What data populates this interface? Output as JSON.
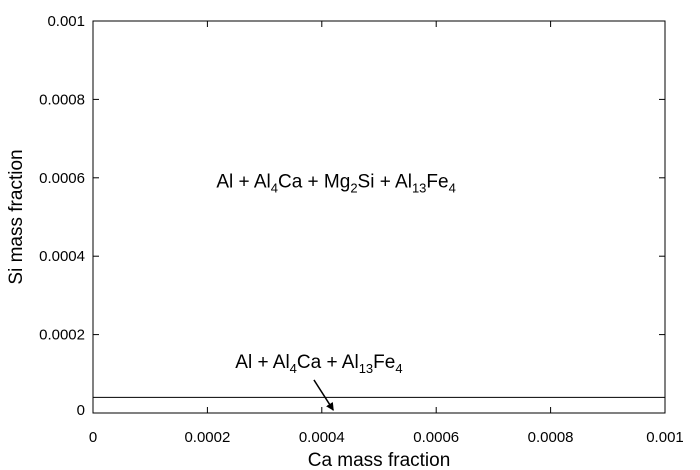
{
  "chart_data": {
    "type": "line",
    "title": "",
    "xlabel": "Ca mass fraction",
    "ylabel": "Si mass fraction",
    "xlim": [
      0,
      0.001
    ],
    "ylim": [
      0,
      0.001
    ],
    "x_ticks": [
      "0",
      "0.0002",
      "0.0004",
      "0.0006",
      "0.0008",
      "0.001"
    ],
    "y_ticks": [
      "0",
      "0.0002",
      "0.0004",
      "0.0006",
      "0.0008",
      "0.001"
    ],
    "x_tick_values": [
      0,
      0.0002,
      0.0004,
      0.0006,
      0.0008,
      0.001
    ],
    "y_tick_values": [
      0,
      0.0002,
      0.0004,
      0.0006,
      0.0008,
      0.001
    ],
    "series": [
      {
        "x": [
          0,
          0.001
        ],
        "y": [
          4e-05,
          4e-05
        ]
      }
    ],
    "grid": false,
    "annotations": [
      {
        "parts": [
          {
            "t": "Al + Al"
          },
          {
            "t": "4",
            "sub": true
          },
          {
            "t": "Ca + Mg"
          },
          {
            "t": "2",
            "sub": true
          },
          {
            "t": "Si + Al"
          },
          {
            "t": "13",
            "sub": true
          },
          {
            "t": "Fe"
          },
          {
            "t": "4",
            "sub": true
          }
        ],
        "x": 0.000425,
        "y": 0.000575
      },
      {
        "parts": [
          {
            "t": "Al + Al"
          },
          {
            "t": "4",
            "sub": true
          },
          {
            "t": "Ca + Al"
          },
          {
            "t": "13",
            "sub": true
          },
          {
            "t": "Fe"
          },
          {
            "t": "4",
            "sub": true
          }
        ],
        "x": 0.000395,
        "y": 0.000115,
        "arrow_to": {
          "x": 0.00042,
          "y": 5e-06
        }
      }
    ]
  }
}
